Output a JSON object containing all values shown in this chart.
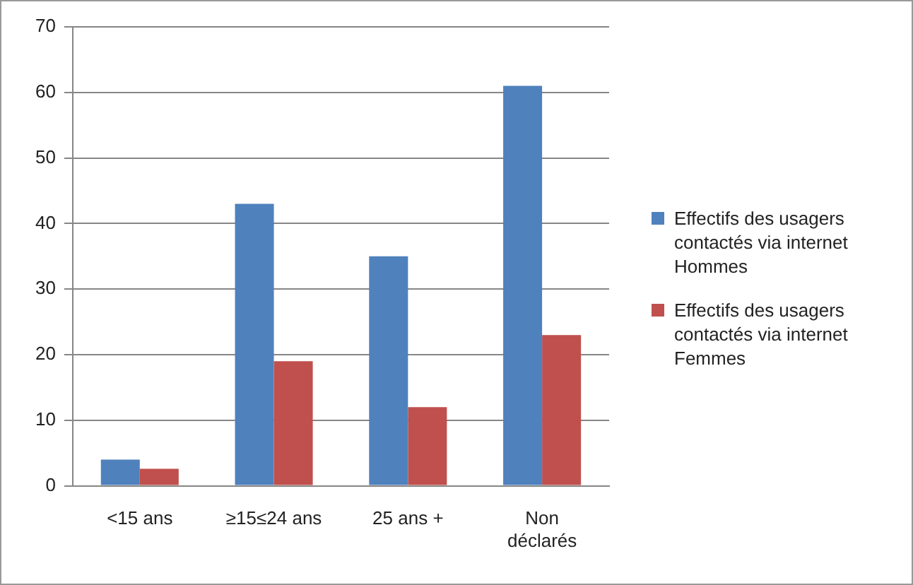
{
  "chart_data": {
    "type": "bar",
    "categories": [
      "<15 ans",
      "≥15≤24 ans",
      "25 ans +",
      "Non déclarés"
    ],
    "series": [
      {
        "name": "Effectifs des usagers contactés via internet Hommes",
        "color": "#4f81bd",
        "values": [
          4,
          43,
          35,
          61
        ]
      },
      {
        "name": "Effectifs des usagers contactés via internet Femmes",
        "color": "#c0504d",
        "values": [
          2.6,
          19,
          12,
          23
        ]
      }
    ],
    "ylim": [
      0,
      70
    ],
    "yticks": [
      0,
      10,
      20,
      30,
      40,
      50,
      60,
      70
    ],
    "grid": "y",
    "legend": "right"
  }
}
